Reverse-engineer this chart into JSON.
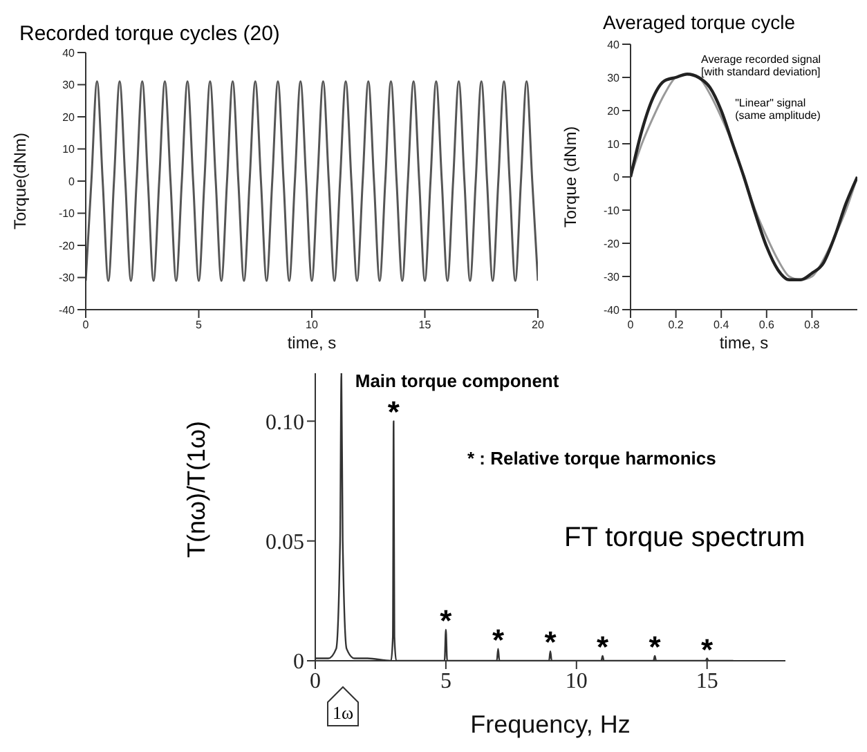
{
  "chart_data": [
    {
      "type": "line",
      "title": "Recorded torque cycles (20)",
      "xlabel": "time, s",
      "ylabel": "Torque(dNm)",
      "xlim": [
        0,
        20
      ],
      "xticks": [
        0,
        5,
        10,
        15,
        20
      ],
      "ylim": [
        -40,
        40
      ],
      "yticks": [
        -40,
        -30,
        -20,
        -10,
        0,
        10,
        20,
        30,
        40
      ],
      "x": [
        0,
        0.25,
        0.5,
        0.75,
        1,
        1.25,
        1.5,
        1.75,
        2,
        2.25,
        2.5,
        2.75,
        3,
        3.25,
        3.5,
        3.75,
        4,
        4.25,
        4.5,
        4.75,
        5,
        5.25,
        5.5,
        5.75,
        6,
        6.25,
        6.5,
        6.75,
        7,
        7.25,
        7.5,
        7.75,
        8,
        8.25,
        8.5,
        8.75,
        9,
        9.25,
        9.5,
        9.75,
        10,
        10.25,
        10.5,
        10.75,
        11,
        11.25,
        11.5,
        11.75,
        12,
        12.25,
        12.5,
        12.75,
        13,
        13.25,
        13.5,
        13.75,
        14,
        14.25,
        14.5,
        14.75,
        15,
        15.25,
        15.5,
        15.75,
        16,
        16.25,
        16.5,
        16.75,
        17,
        17.25,
        17.5,
        17.75,
        18,
        18.25,
        18.5,
        18.75,
        19,
        19.25,
        19.5,
        19.75,
        20
      ],
      "series": [
        {
          "color": "#555555",
          "values": [
            -31,
            0,
            31,
            0,
            -31,
            0,
            31,
            0,
            -31,
            0,
            31,
            0,
            -31,
            0,
            31,
            0,
            -31,
            0,
            31,
            0,
            -31,
            0,
            31,
            0,
            -31,
            0,
            31,
            0,
            -31,
            0,
            31,
            0,
            -31,
            0,
            31,
            0,
            -31,
            0,
            31,
            0,
            -31,
            0,
            31,
            0,
            -31,
            0,
            31,
            0,
            -31,
            0,
            31,
            0,
            -31,
            0,
            31,
            0,
            -31,
            0,
            31,
            0,
            -31,
            0,
            31,
            0,
            -31,
            0,
            31,
            0,
            -31,
            0,
            31,
            0,
            -31,
            0,
            31,
            0,
            -31,
            0,
            31,
            0,
            -31
          ]
        }
      ]
    },
    {
      "type": "line",
      "title": "Averaged torque cycle",
      "xlabel": "time, s",
      "ylabel": "Torque (dNm)",
      "xlim": [
        0,
        1
      ],
      "xticks": [
        0,
        0.2,
        0.4,
        0.6,
        0.8
      ],
      "ylim": [
        -40,
        40
      ],
      "yticks": [
        -40,
        -30,
        -20,
        -10,
        0,
        10,
        20,
        30,
        40
      ],
      "x": [
        0,
        0.05,
        0.1,
        0.15,
        0.2,
        0.25,
        0.3,
        0.35,
        0.4,
        0.45,
        0.5,
        0.55,
        0.6,
        0.65,
        0.7,
        0.75,
        0.8,
        0.85,
        0.9,
        0.95,
        1
      ],
      "series": [
        {
          "color": "#999999",
          "values": [
            0,
            10,
            18,
            25,
            30,
            31,
            30,
            25,
            18,
            10,
            0,
            -10,
            -18,
            -25,
            -30,
            -31,
            -30,
            -25,
            -18,
            -10,
            0
          ]
        },
        {
          "color": "#222222",
          "values": [
            0,
            14,
            24,
            29,
            30,
            31,
            30,
            27,
            20,
            10,
            0,
            -11,
            -21,
            -28,
            -31,
            -31,
            -29,
            -26,
            -18,
            -8,
            0
          ]
        }
      ],
      "annotations": [
        {
          "text": "Average recorded signal\n[with standard deviation]",
          "x": 0.25,
          "y": 31
        },
        {
          "text": "\"Linear\" signal\n(same amplitude)",
          "x": 0.4,
          "y": 18
        }
      ]
    },
    {
      "type": "line",
      "title": "FT torque spectrum",
      "xlabel": "Frequency, Hz",
      "ylabel": "T(nω)/T(1ω)",
      "xlim": [
        0,
        18
      ],
      "xticks": [
        0,
        5,
        10,
        15
      ],
      "ylim": [
        0,
        0.12
      ],
      "yticks": [
        0,
        0.05,
        {
          "value": 0.1,
          "label": "0.10"
        }
      ],
      "x": [
        0,
        0.5,
        0.8,
        0.95,
        1,
        1.05,
        1.2,
        1.5,
        2,
        2.9,
        2.97,
        3,
        3.03,
        3.1,
        4,
        4.95,
        5,
        5.05,
        6,
        6.95,
        7,
        7.05,
        8.95,
        9,
        9.05,
        10.95,
        11,
        11.05,
        12.95,
        13,
        13.05,
        14.95,
        15,
        15.05,
        16
      ],
      "series": [
        {
          "color": "#333333",
          "values": [
            0.001,
            0.001,
            0.005,
            0.05,
            0.12,
            0.05,
            0.005,
            0.001,
            0.001,
            0,
            0.01,
            0.1,
            0.01,
            0,
            0,
            0,
            0.013,
            0,
            0,
            0,
            0.005,
            0,
            0,
            0.004,
            0,
            0,
            0.002,
            0,
            0,
            0.002,
            0,
            0,
            0.001,
            0,
            0
          ]
        }
      ],
      "annotations": [
        {
          "text": "Main torque component",
          "x": 1,
          "y": 0.12
        },
        {
          "text": "*",
          "x": 3,
          "y": 0.1
        },
        {
          "text": "*",
          "x": 5,
          "y": 0.013
        },
        {
          "text": "*",
          "x": 7,
          "y": 0.005
        },
        {
          "text": "*",
          "x": 9,
          "y": 0.004
        },
        {
          "text": "*",
          "x": 11,
          "y": 0.002
        },
        {
          "text": "*",
          "x": 13,
          "y": 0.002
        },
        {
          "text": "*",
          "x": 15,
          "y": 0.001
        },
        "* : Relative torque harmonics",
        "1ω"
      ]
    }
  ]
}
